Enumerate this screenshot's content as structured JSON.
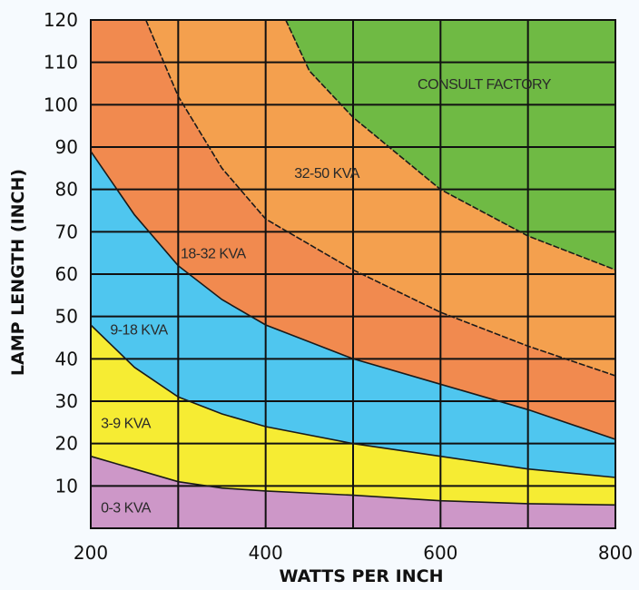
{
  "chart_data": {
    "type": "area",
    "title": "",
    "xlabel": "WATTS PER INCH",
    "ylabel": "LAMP LENGTH (INCH)",
    "xlim": [
      200,
      800
    ],
    "ylim": [
      0,
      120
    ],
    "x_ticks": [
      "200",
      "400",
      "600",
      "800"
    ],
    "y_ticks": [
      "10",
      "20",
      "30",
      "40",
      "50",
      "60",
      "70",
      "80",
      "90",
      "100",
      "110",
      "120"
    ],
    "grid": true,
    "boundaries": [
      {
        "name": "0-3 KVA upper limit",
        "points": [
          [
            200,
            17
          ],
          [
            250,
            14
          ],
          [
            300,
            11
          ],
          [
            350,
            9.5
          ],
          [
            400,
            8.8
          ],
          [
            500,
            7.8
          ],
          [
            600,
            6.5
          ],
          [
            700,
            5.8
          ],
          [
            800,
            5.5
          ]
        ]
      },
      {
        "name": "3-9 KVA upper limit",
        "points": [
          [
            200,
            48
          ],
          [
            250,
            38
          ],
          [
            300,
            31
          ],
          [
            350,
            27
          ],
          [
            400,
            24
          ],
          [
            500,
            20
          ],
          [
            600,
            17
          ],
          [
            700,
            14
          ],
          [
            800,
            12
          ]
        ]
      },
      {
        "name": "9-18 KVA upper limit",
        "points": [
          [
            200,
            89
          ],
          [
            250,
            74
          ],
          [
            300,
            62
          ],
          [
            350,
            54
          ],
          [
            400,
            48
          ],
          [
            500,
            40
          ],
          [
            600,
            34
          ],
          [
            700,
            28
          ],
          [
            800,
            21
          ]
        ]
      },
      {
        "name": "18-32 KVA upper limit",
        "points": [
          [
            263,
            120
          ],
          [
            300,
            102
          ],
          [
            350,
            85
          ],
          [
            400,
            73
          ],
          [
            500,
            61
          ],
          [
            600,
            51
          ],
          [
            700,
            43
          ],
          [
            800,
            36
          ]
        ]
      },
      {
        "name": "32-50 KVA upper limit",
        "points": [
          [
            423,
            120
          ],
          [
            450,
            108
          ],
          [
            500,
            97
          ],
          [
            600,
            80
          ],
          [
            700,
            69
          ],
          [
            800,
            61
          ]
        ]
      }
    ],
    "regions": [
      {
        "label": "0-3 KVA",
        "color": "#cd97c8",
        "label_pos": [
          240,
          5
        ]
      },
      {
        "label": "3-9 KVA",
        "color": "#f6ec33",
        "label_pos": [
          240,
          25
        ]
      },
      {
        "label": "9-18 KVA",
        "color": "#4fc6ef",
        "label_pos": [
          255,
          47
        ]
      },
      {
        "label": "18-32 KVA",
        "color": "#f18a4f",
        "label_pos": [
          340,
          65
        ]
      },
      {
        "label": "32-50 KVA",
        "color": "#f4a04e",
        "label_pos": [
          470,
          84
        ]
      },
      {
        "label": "CONSULT FACTORY",
        "color": "#6fba44",
        "label_pos": [
          650,
          105
        ]
      }
    ]
  }
}
